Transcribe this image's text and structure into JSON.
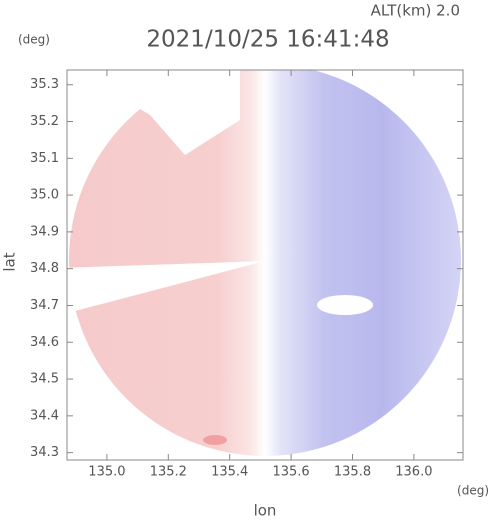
{
  "chart_data": {
    "type": "map",
    "title": "2021/10/25 16:41:48",
    "altitude_label": "ALT(km) 2.0",
    "y_unit": "(deg)",
    "x_unit": "(deg)",
    "y_label": "lat",
    "x_label": "lon",
    "xlim": [
      134.87,
      136.16
    ],
    "ylim": [
      34.28,
      35.34
    ],
    "xticks": [
      {
        "value": 135,
        "label": "135.0"
      },
      135.2,
      135.4,
      135.6,
      135.8,
      {
        "value": 136,
        "label": "136.0"
      }
    ],
    "yticks": [
      35.3,
      35.2,
      35.1,
      {
        "value": 35,
        "label": "35.0"
      },
      34.9,
      34.8,
      34.7,
      34.6,
      34.5,
      34.4,
      34.3
    ]
  }
}
